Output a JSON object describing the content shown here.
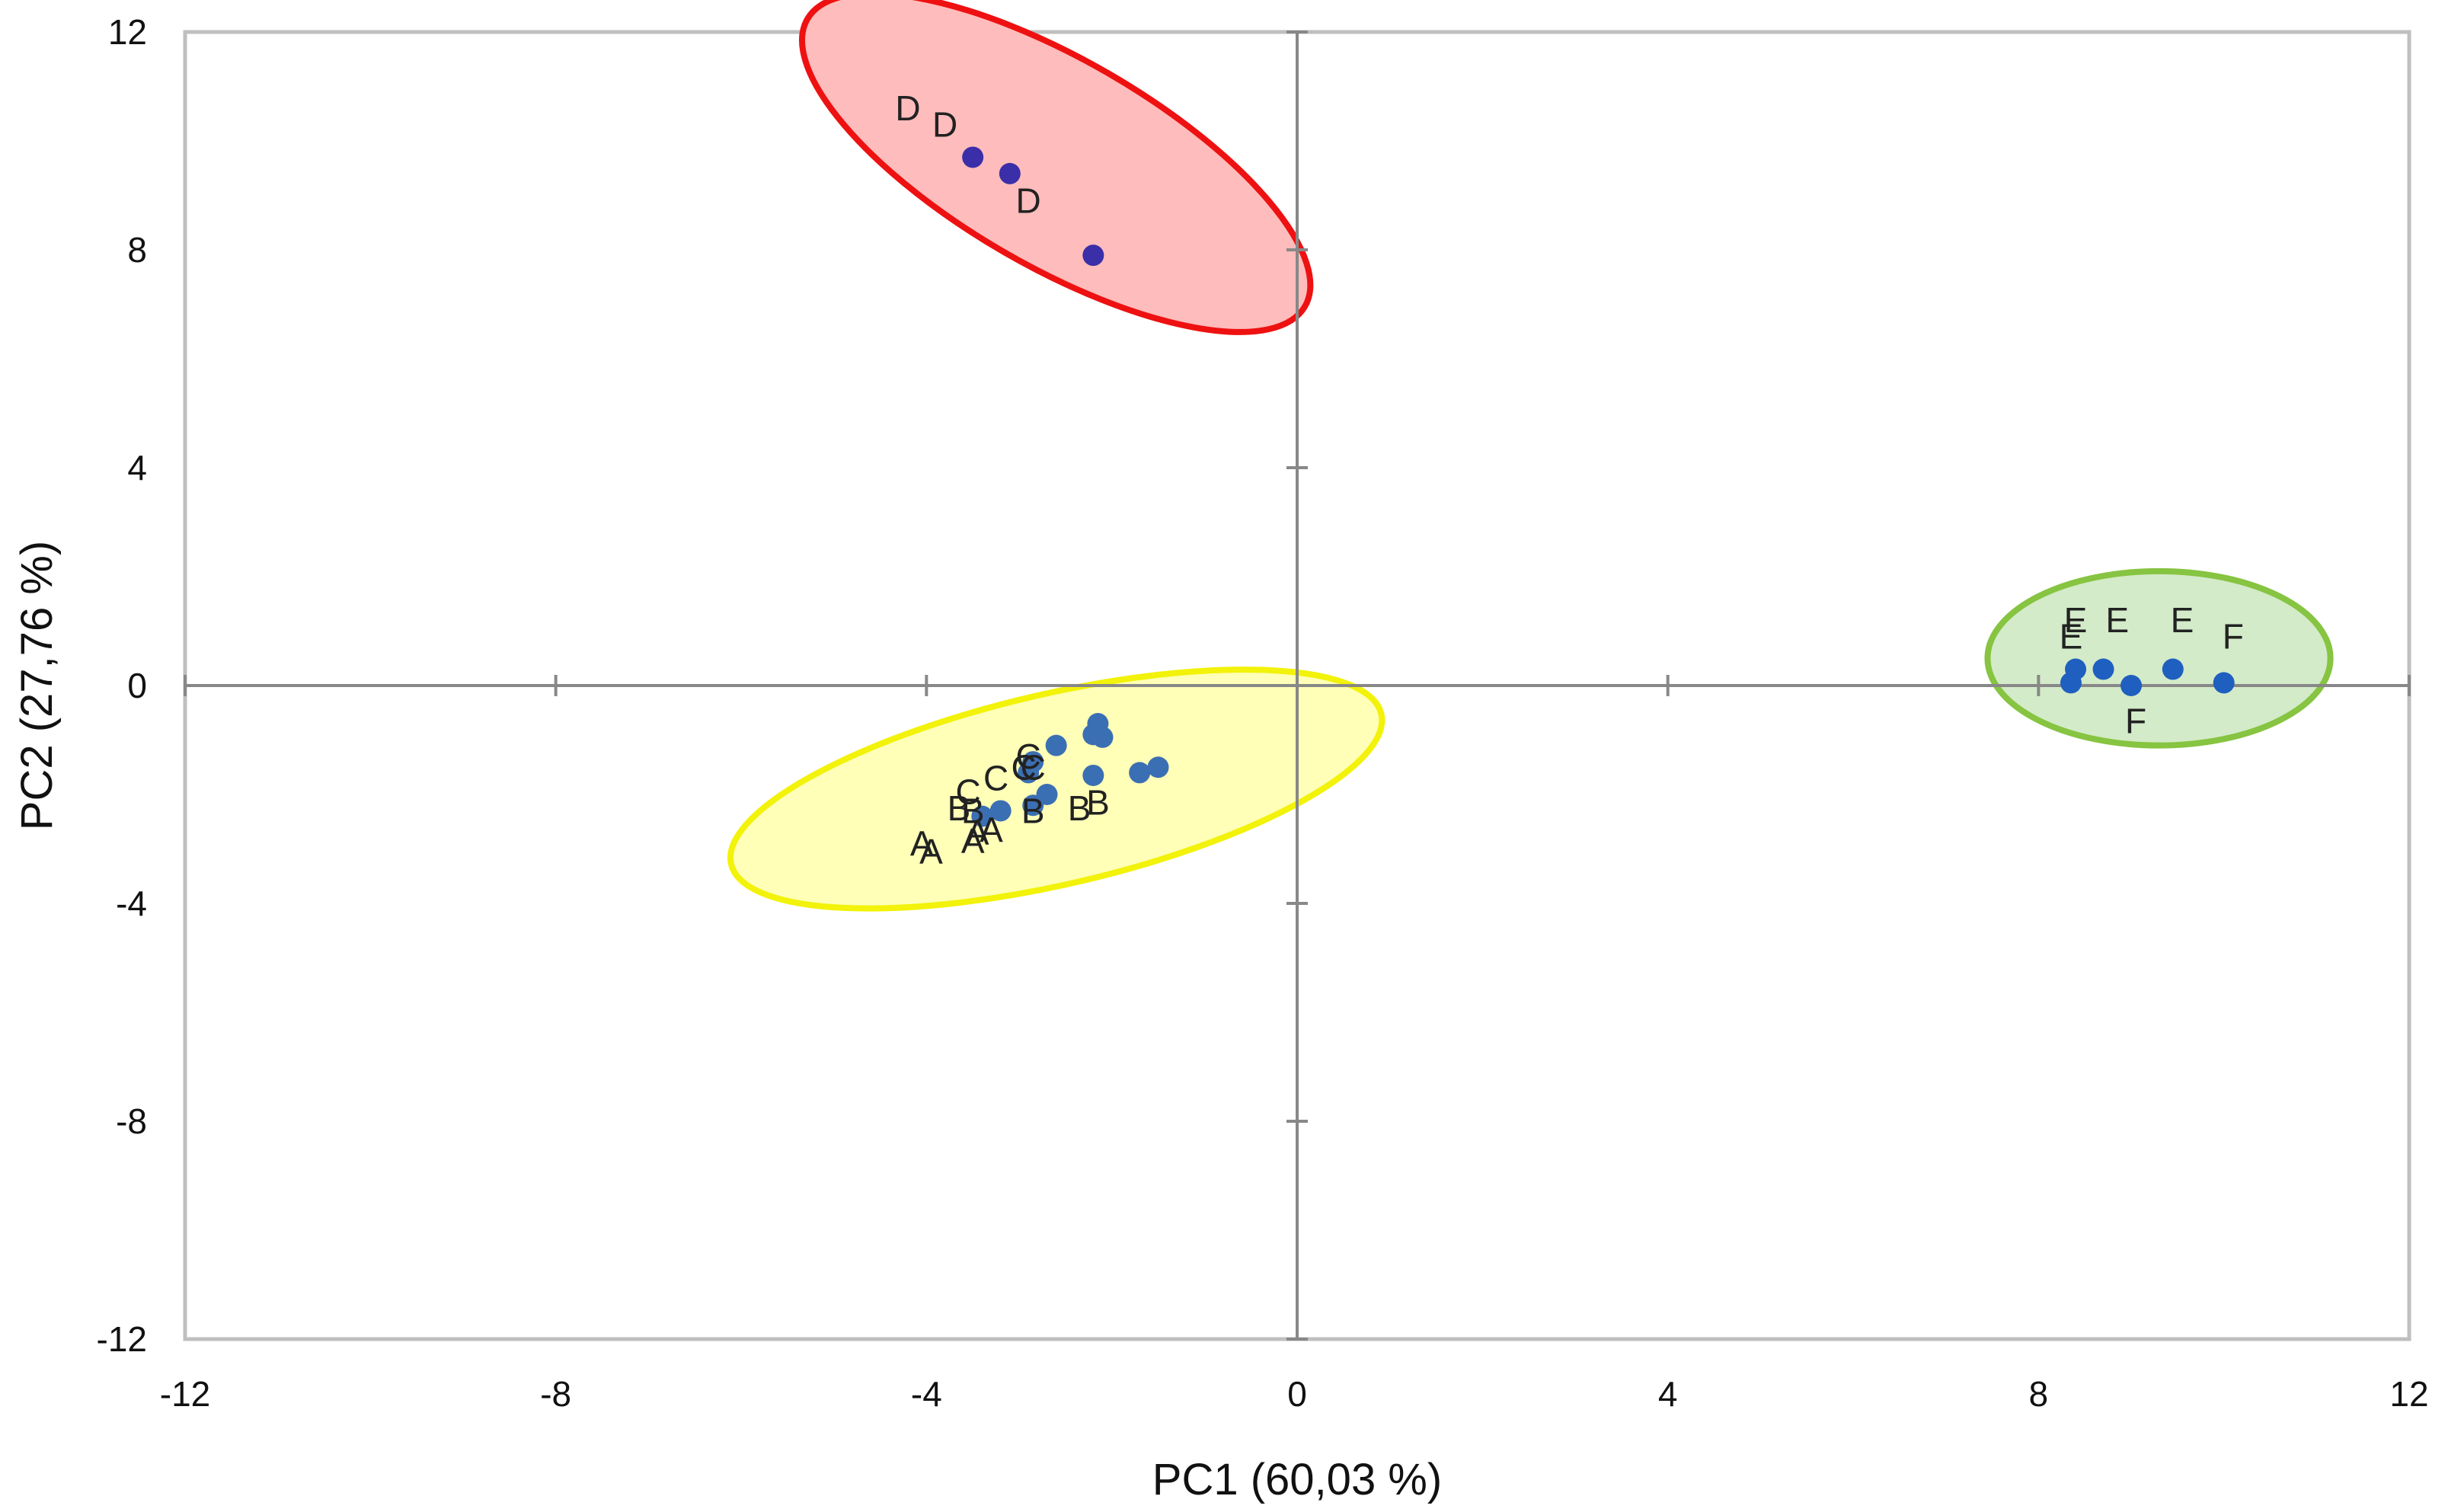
{
  "chart_data": {
    "type": "scatter",
    "title": "",
    "xlabel": "PC1 (60,03 %)",
    "ylabel": "PC2 (27,76 %)",
    "xlim": [
      -12,
      12
    ],
    "ylim": [
      -12,
      12
    ],
    "xticks": [
      -12,
      -8,
      -4,
      0,
      4,
      8,
      12
    ],
    "yticks": [
      -12,
      -8,
      -4,
      0,
      4,
      8,
      12
    ],
    "xtick_labels": [
      "-12",
      "-8",
      "-4",
      "0",
      "4",
      "8",
      "12"
    ],
    "ytick_labels": [
      "-12",
      "-8",
      "-4",
      "0",
      "4",
      "8",
      "12"
    ],
    "grid": false,
    "legend": "none",
    "colors": {
      "points_blue": "#3b6fb3",
      "points_dark": "#3a2fa8",
      "points_green_group": "#1f5fbf",
      "group_d_fill": "#ffbcbc",
      "group_d_stroke": "#ee1111",
      "group_abc_fill": "#ffffb8",
      "group_abc_stroke": "#f2f20a",
      "group_ef_fill": "#d3ebc8",
      "group_ef_stroke": "#86c441",
      "axis_line": "#888888",
      "frame": "#bfbfbf"
    },
    "groups": [
      {
        "members": [
          "D"
        ],
        "center": [
          -2.6,
          9.6
        ],
        "radii": [
          3.1,
          1.9
        ],
        "rotation_deg": 30
      },
      {
        "members": [
          "A",
          "B",
          "C"
        ],
        "center": [
          -2.6,
          -1.9
        ],
        "radii": [
          3.6,
          1.75
        ],
        "rotation_deg": -13
      },
      {
        "members": [
          "E",
          "F"
        ],
        "center": [
          9.3,
          0.5
        ],
        "radii": [
          1.85,
          1.6
        ],
        "rotation_deg": 0
      }
    ],
    "points": [
      {
        "x": -3.5,
        "y": 9.7,
        "color": "dark"
      },
      {
        "x": -3.1,
        "y": 9.4,
        "color": "dark"
      },
      {
        "x": -2.2,
        "y": 7.9,
        "color": "dark"
      },
      {
        "x": -3.4,
        "y": -2.4,
        "color": "blue"
      },
      {
        "x": -3.2,
        "y": -2.3,
        "color": "blue"
      },
      {
        "x": -2.85,
        "y": -2.2,
        "color": "blue"
      },
      {
        "x": -2.7,
        "y": -2.0,
        "color": "blue"
      },
      {
        "x": -2.9,
        "y": -1.6,
        "color": "blue"
      },
      {
        "x": -2.85,
        "y": -1.4,
        "color": "blue"
      },
      {
        "x": -2.6,
        "y": -1.1,
        "color": "blue"
      },
      {
        "x": -2.2,
        "y": -0.9,
        "color": "blue"
      },
      {
        "x": -2.15,
        "y": -0.7,
        "color": "blue"
      },
      {
        "x": -2.1,
        "y": -0.95,
        "color": "blue"
      },
      {
        "x": -2.2,
        "y": -1.65,
        "color": "blue"
      },
      {
        "x": -1.7,
        "y": -1.6,
        "color": "blue"
      },
      {
        "x": -1.5,
        "y": -1.5,
        "color": "blue"
      },
      {
        "x": 8.4,
        "y": 0.3,
        "color": "green_group"
      },
      {
        "x": 8.35,
        "y": 0.05,
        "color": "green_group"
      },
      {
        "x": 8.7,
        "y": 0.3,
        "color": "green_group"
      },
      {
        "x": 9.0,
        "y": 0.0,
        "color": "green_group"
      },
      {
        "x": 9.45,
        "y": 0.3,
        "color": "green_group"
      },
      {
        "x": 10.0,
        "y": 0.05,
        "color": "green_group"
      }
    ],
    "labels": [
      {
        "text": "D",
        "x": -4.2,
        "y": 10.6
      },
      {
        "text": "D",
        "x": -3.8,
        "y": 10.3
      },
      {
        "text": "D",
        "x": -2.9,
        "y": 8.9
      },
      {
        "text": "A",
        "x": -4.05,
        "y": -2.9
      },
      {
        "text": "A",
        "x": -3.95,
        "y": -3.05
      },
      {
        "text": "A",
        "x": -3.45,
        "y": -2.7
      },
      {
        "text": "A",
        "x": -3.5,
        "y": -2.85
      },
      {
        "text": "A",
        "x": -3.3,
        "y": -2.65
      },
      {
        "text": "B",
        "x": -3.65,
        "y": -2.25
      },
      {
        "text": "B",
        "x": -3.5,
        "y": -2.3
      },
      {
        "text": "B",
        "x": -2.85,
        "y": -2.3
      },
      {
        "text": "B",
        "x": -2.35,
        "y": -2.25
      },
      {
        "text": "B",
        "x": -2.15,
        "y": -2.15
      },
      {
        "text": "C",
        "x": -3.55,
        "y": -1.95
      },
      {
        "text": "C",
        "x": -3.25,
        "y": -1.7
      },
      {
        "text": "C",
        "x": -2.95,
        "y": -1.5
      },
      {
        "text": "C",
        "x": -2.9,
        "y": -1.3
      },
      {
        "text": "C",
        "x": -2.85,
        "y": -1.5
      },
      {
        "text": "E",
        "x": 8.4,
        "y": 1.2
      },
      {
        "text": "E",
        "x": 8.35,
        "y": 0.9
      },
      {
        "text": "E",
        "x": 8.85,
        "y": 1.2
      },
      {
        "text": "E",
        "x": 9.55,
        "y": 1.2
      },
      {
        "text": "F",
        "x": 10.1,
        "y": 0.9
      },
      {
        "text": "F",
        "x": 9.05,
        "y": -0.65
      }
    ]
  }
}
